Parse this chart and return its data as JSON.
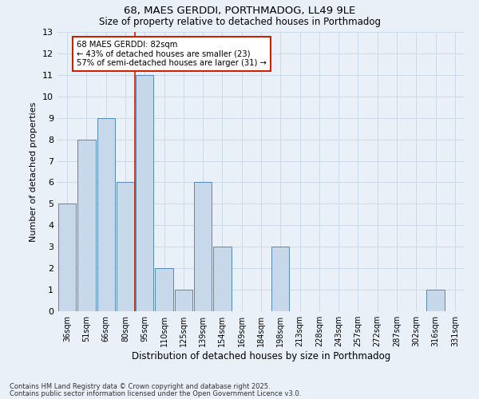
{
  "title1": "68, MAES GERDDI, PORTHMADOG, LL49 9LE",
  "title2": "Size of property relative to detached houses in Porthmadog",
  "categories": [
    "36sqm",
    "51sqm",
    "66sqm",
    "80sqm",
    "95sqm",
    "110sqm",
    "125sqm",
    "139sqm",
    "154sqm",
    "169sqm",
    "184sqm",
    "198sqm",
    "213sqm",
    "228sqm",
    "243sqm",
    "257sqm",
    "272sqm",
    "287sqm",
    "302sqm",
    "316sqm",
    "331sqm"
  ],
  "values": [
    5,
    8,
    9,
    6,
    11,
    2,
    1,
    6,
    3,
    0,
    0,
    3,
    0,
    0,
    0,
    0,
    0,
    0,
    0,
    1,
    0
  ],
  "bar_color": "#c8d8eb",
  "bar_edge_color": "#5588bb",
  "annotation_text_line1": "68 MAES GERDDI: 82sqm",
  "annotation_text_line2": "← 43% of detached houses are smaller (23)",
  "annotation_text_line3": "57% of semi-detached houses are larger (31) →",
  "annotation_box_facecolor": "#ffffff",
  "annotation_box_edgecolor": "#cc2200",
  "vline_color": "#cc2200",
  "vline_x": 3.5,
  "xlabel": "Distribution of detached houses by size in Porthmadog",
  "ylabel": "Number of detached properties",
  "ylim": [
    0,
    13
  ],
  "yticks": [
    0,
    1,
    2,
    3,
    4,
    5,
    6,
    7,
    8,
    9,
    10,
    11,
    12,
    13
  ],
  "grid_color": "#ccd9e8",
  "bg_color": "#eaf0f8",
  "plot_bg_color": "#eaf0f8",
  "footnote1": "Contains HM Land Registry data © Crown copyright and database right 2025.",
  "footnote2": "Contains public sector information licensed under the Open Government Licence v3.0."
}
